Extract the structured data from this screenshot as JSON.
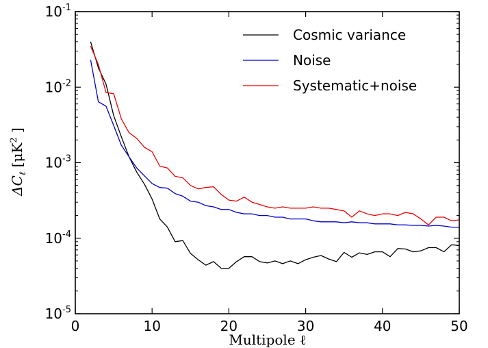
{
  "chart_data": {
    "type": "line",
    "title": "",
    "xlabel": "Multipole ℓ",
    "ylabel_parts": {
      "prefix": "ΔC",
      "subscript": "ℓ",
      "unit_open": " [μK",
      "unit_power": "2",
      "unit_close": " ]"
    },
    "x_scale": "linear",
    "y_scale": "log",
    "xlim": [
      0,
      50
    ],
    "ylim": [
      1e-05,
      0.1
    ],
    "x_ticks": [
      {
        "value": 0,
        "label": "0"
      },
      {
        "value": 10,
        "label": "10"
      },
      {
        "value": 20,
        "label": "20"
      },
      {
        "value": 30,
        "label": "30"
      },
      {
        "value": 40,
        "label": "40"
      },
      {
        "value": 50,
        "label": "50"
      }
    ],
    "y_ticks": [
      {
        "value": 1e-05,
        "base": "10",
        "exp": "-5"
      },
      {
        "value": 0.0001,
        "base": "10",
        "exp": "-4"
      },
      {
        "value": 0.001,
        "base": "10",
        "exp": "-3"
      },
      {
        "value": 0.01,
        "base": "10",
        "exp": "-2"
      },
      {
        "value": 0.1,
        "base": "10",
        "exp": "-1"
      }
    ],
    "grid": false,
    "legend_position": "top-right",
    "x": [
      2,
      3,
      4,
      5,
      6,
      7,
      8,
      9,
      10,
      11,
      12,
      13,
      14,
      15,
      16,
      17,
      18,
      19,
      20,
      21,
      22,
      23,
      24,
      25,
      26,
      27,
      28,
      29,
      30,
      31,
      32,
      33,
      34,
      35,
      36,
      37,
      38,
      39,
      40,
      41,
      42,
      43,
      44,
      45,
      46,
      47,
      48,
      49,
      50
    ],
    "series": [
      {
        "name": "Cosmic variance",
        "color": "#000000",
        "values": [
          0.04,
          0.018,
          0.011,
          0.0042,
          0.0022,
          0.0012,
          0.00075,
          0.00052,
          0.00033,
          0.00018,
          0.00014,
          9e-05,
          9.3e-05,
          6.3e-05,
          5.2e-05,
          4.4e-05,
          4.9e-05,
          4e-05,
          4e-05,
          4.9e-05,
          5.7e-05,
          5.7e-05,
          4.9e-05,
          4.7e-05,
          5e-05,
          4.6e-05,
          5e-05,
          4.6e-05,
          5.2e-05,
          5.6e-05,
          5.9e-05,
          5.3e-05,
          4.9e-05,
          6.5e-05,
          5.6e-05,
          6.4e-05,
          6.1e-05,
          6.6e-05,
          6.6e-05,
          5.7e-05,
          7.3e-05,
          7.2e-05,
          6.6e-05,
          6.8e-05,
          7.5e-05,
          7.5e-05,
          6.6e-05,
          8.2e-05,
          8e-05
        ]
      },
      {
        "name": "Noise",
        "color": "#0000cc",
        "values": [
          0.023,
          0.0064,
          0.0056,
          0.0031,
          0.0017,
          0.0012,
          0.00085,
          0.00067,
          0.00053,
          0.00047,
          0.00046,
          0.00039,
          0.00036,
          0.00031,
          0.0003,
          0.00027,
          0.00026,
          0.00024,
          0.00024,
          0.00022,
          0.00021,
          0.00021,
          0.0002,
          0.0002,
          0.00019,
          0.00019,
          0.00018,
          0.00018,
          0.00018,
          0.00017,
          0.000165,
          0.000165,
          0.000165,
          0.00016,
          0.000165,
          0.00016,
          0.00016,
          0.000155,
          0.000155,
          0.000155,
          0.00015,
          0.00015,
          0.000148,
          0.000148,
          0.000145,
          0.000148,
          0.000145,
          0.00014,
          0.00014
        ]
      },
      {
        "name": "Systematic+noise",
        "color": "#ee0000",
        "values": [
          0.035,
          0.02,
          0.0085,
          0.0082,
          0.0038,
          0.0025,
          0.0021,
          0.0016,
          0.0014,
          0.0009,
          0.00085,
          0.00066,
          0.00063,
          0.0005,
          0.00045,
          0.00047,
          0.00048,
          0.00038,
          0.00032,
          0.00031,
          0.00035,
          0.0003,
          0.00028,
          0.00026,
          0.00025,
          0.00026,
          0.00025,
          0.00025,
          0.00025,
          0.00026,
          0.00025,
          0.00025,
          0.00024,
          0.00023,
          0.00019,
          0.00023,
          0.00021,
          0.0002,
          0.00021,
          0.00021,
          0.0002,
          0.00022,
          0.00021,
          0.00018,
          0.00015,
          0.00019,
          0.00019,
          0.00017,
          0.000175
        ]
      }
    ]
  }
}
